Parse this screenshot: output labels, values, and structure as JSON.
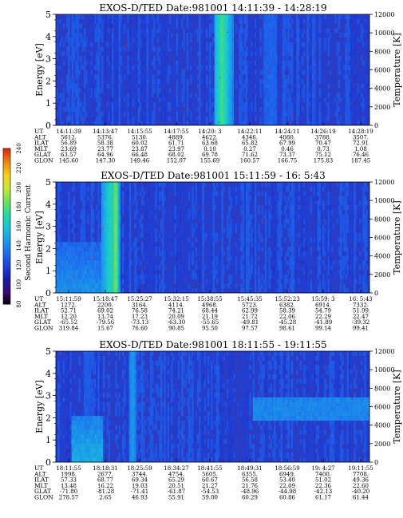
{
  "chart_data": [
    {
      "type": "heatmap",
      "title": "EXOS-D/TED  Date:981001  14:11:39 - 14:28:19",
      "ylabel": "Energy [eV]",
      "y2label": "Temperature [K]",
      "ylim": [
        0,
        5
      ],
      "y2lim": [
        0,
        12000
      ],
      "yticks": [
        "0",
        "1",
        "2",
        "3",
        "4",
        "5"
      ],
      "y2ticks": [
        "0",
        "2000",
        "4000",
        "6000",
        "8000",
        "10000",
        "12000"
      ],
      "row_labels": [
        "UT",
        "ALT",
        "ILAT",
        "MLT",
        "GLAT",
        "GLON"
      ],
      "columns": [
        [
          "14:11:39",
          "5612.",
          "56.89",
          "23.69",
          "63.57",
          "145.60"
        ],
        [
          "14:13:47",
          "5376.",
          "58.38",
          "23.77",
          "64.96",
          "147.30"
        ],
        [
          "14:15:55",
          "5130.",
          "60.02",
          "23.87",
          "66.48",
          "149.46"
        ],
        [
          "14:17:55",
          "4889.",
          "61.71",
          "23.97",
          "68.02",
          "152.07"
        ],
        [
          "14:20: 3",
          "4622.",
          "63.68",
          "0.10",
          "69.78",
          "155.69"
        ],
        [
          "14:22:11",
          "4346.",
          "65.82",
          "0.27",
          "71.62",
          "160.57"
        ],
        [
          "14:24:11",
          "4080.",
          "67.99",
          "0.46",
          "73.37",
          "166.75"
        ],
        [
          "14:26:19",
          "3788.",
          "70.47",
          "0.73",
          "75.12",
          "175.83"
        ],
        [
          "14:28:19",
          "3507.",
          "72.91",
          "1.08",
          "76.46",
          "187.45"
        ]
      ],
      "features": [
        {
          "t": 0.53,
          "w": 0.025,
          "level": 0.62
        },
        {
          "t": 0.555,
          "w": 0.01,
          "level": 0.45
        },
        {
          "t": 0.685,
          "w": 0.02,
          "level": 0.32
        },
        {
          "t": 0.74,
          "w": 0.015,
          "level": 0.28
        },
        {
          "t": 0.8,
          "w": 0.012,
          "level": 0.26
        }
      ],
      "lowband": null
    },
    {
      "type": "heatmap",
      "title": "EXOS-D/TED   Date:981001   15:11:59 - 16: 5:43",
      "ylabel": "Energy [eV]",
      "y2label": "Temperature [K]",
      "ylim": [
        0,
        5
      ],
      "y2lim": [
        0,
        12000
      ],
      "yticks": [
        "0",
        "1",
        "2",
        "3",
        "4",
        "5"
      ],
      "y2ticks": [
        "0",
        "2000",
        "4000",
        "6000",
        "8000",
        "10000",
        "12000"
      ],
      "row_labels": [
        "UT",
        "ALT",
        "ILAT",
        "MLT",
        "GLAT",
        "GLON"
      ],
      "columns": [
        [
          "15:11:59",
          "1272.",
          "52.71",
          "12.20",
          "-65.52",
          "319.84"
        ],
        [
          "15:18:47",
          "2200.",
          "69.02",
          "13.74",
          "-79.56",
          "15.67"
        ],
        [
          "15:25:27",
          "3164.",
          "76.58",
          "17.23",
          "-73.13",
          "76.60"
        ],
        [
          "15:32:15",
          "4114.",
          "74.21",
          "20.09",
          "-63.30",
          "90.85"
        ],
        [
          "15:38:55",
          "4968.",
          "68.44",
          "21.19",
          "-55.65",
          "95.50"
        ],
        [
          "15:45:35",
          "5723.",
          "62.99",
          "21.72",
          "-49.81",
          "97.57"
        ],
        [
          "15:52:23",
          "6382.",
          "58.39",
          "22.06",
          "-45.28",
          "98.61"
        ],
        [
          "15:59: 3",
          "6914.",
          "54.79",
          "22.29",
          "-41.89",
          "99.14"
        ],
        [
          "16: 5:43",
          "7332.",
          "51.99",
          "22.47",
          "-39.32",
          "99.41"
        ]
      ],
      "features": [
        {
          "t": 0.175,
          "w": 0.03,
          "level": 0.55
        },
        {
          "t": 0.19,
          "w": 0.012,
          "level": 0.7
        }
      ],
      "lowband": {
        "t0": 0.0,
        "t1": 0.17,
        "emax": 2.3,
        "level": 0.4
      }
    },
    {
      "type": "heatmap",
      "title": "EXOS-D/TED   Date:981001   18:11:55 - 19:11:55",
      "ylabel": "Energy [eV]",
      "y2label": "Temperature [K]",
      "ylim": [
        0,
        5
      ],
      "y2lim": [
        0,
        12000
      ],
      "yticks": [
        "0",
        "1",
        "2",
        "3",
        "4",
        "5"
      ],
      "y2ticks": [
        "0",
        "2000",
        "4000",
        "6000",
        "8000",
        "10000",
        "12000"
      ],
      "row_labels": [
        "UT",
        "ALT",
        "ILAT",
        "MLT",
        "GLAT",
        "GLON"
      ],
      "columns": [
        [
          "18:11:55",
          "1998.",
          "57.33",
          "13.48",
          "-71.80",
          "278.57"
        ],
        [
          "18:18:31",
          "2677.",
          "68.77",
          "16.22",
          "-81.28",
          "2.65"
        ],
        [
          "18:25:59",
          "3744.",
          "69.34",
          "19.03",
          "-71.41",
          "46.93"
        ],
        [
          "18:34:27",
          "4754.",
          "65.29",
          "20.51",
          "-61.87",
          "55.91"
        ],
        [
          "18:41:55",
          "5605.",
          "60.67",
          "21.27",
          "-54.53",
          "59.00"
        ],
        [
          "18:49:31",
          "6355.",
          "56.58",
          "21.76",
          "-48.96",
          "60.29"
        ],
        [
          "18:56:59",
          "6949.",
          "53.40",
          "22.09",
          "-44.98",
          "60.86"
        ],
        [
          "19: 4:27",
          "7400.",
          "51.02",
          "22.36",
          "-42.13",
          "61.17"
        ],
        [
          "19:11:55",
          "7708.",
          "49.36",
          "22.60",
          "-40.20",
          "61.44"
        ]
      ],
      "features": [
        {
          "t": 0.245,
          "w": 0.012,
          "level": 0.42
        },
        {
          "t": 0.1,
          "w": 0.012,
          "level": 0.3
        }
      ],
      "lowband": {
        "t0": 0.05,
        "t1": 0.15,
        "emax": 2.0,
        "level": 0.45
      },
      "highband": {
        "t0": 0.63,
        "t1": 1.0,
        "emin": 1.9,
        "emax": 2.9,
        "level": 0.38
      }
    }
  ],
  "colorbar": {
    "label": "Second Harmonic Current",
    "ticks": [
      "80",
      "100",
      "120",
      "140",
      "160",
      "180",
      "200",
      "220",
      "240"
    ],
    "stops": [
      "#000000",
      "#3a0a6e",
      "#1a1aa8",
      "#1f3fd6",
      "#1e6cf0",
      "#1a9be8",
      "#19c6d6",
      "#27d9a0",
      "#6fe05a",
      "#c8e63a",
      "#f2d022",
      "#f08a14",
      "#e02810"
    ]
  },
  "colors": {
    "background": "#2636c8",
    "base": "#2a3cc4"
  }
}
